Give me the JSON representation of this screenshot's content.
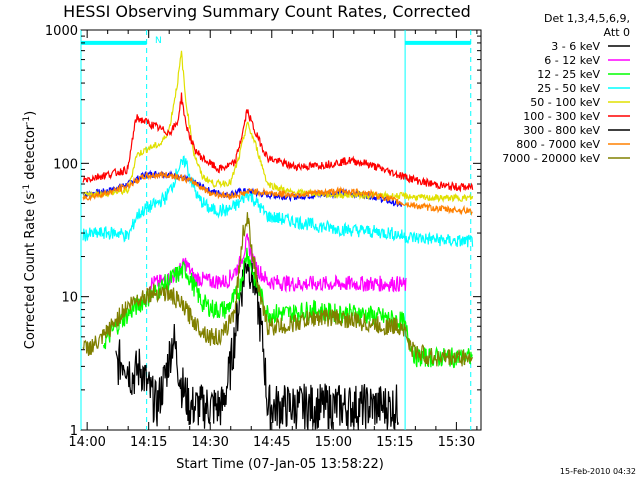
{
  "chart_data": {
    "type": "line",
    "title": "HESSI Observing Summary Count Rates, Corrected",
    "xlabel": "Start Time (07-Jan-05 13:58:22)",
    "ylabel_main": "Corrected Count Rate (s",
    "ylabel_sup1": "-1",
    "ylabel_mid": " detector",
    "ylabel_sup2": "-1",
    "ylabel_end": ")",
    "yscale": "log",
    "ylim": [
      1,
      1000
    ],
    "xlim_minutes": [
      -1.5,
      96
    ],
    "x_tick_labels": [
      "14:00",
      "14:15",
      "14:30",
      "14:45",
      "15:00",
      "15:15",
      "15:30"
    ],
    "x_tick_minutes": [
      0,
      15,
      30,
      45,
      60,
      75,
      90
    ],
    "y_tick_labels": [
      "1",
      "10",
      "100",
      "1000"
    ],
    "y_tick_values": [
      1,
      10,
      100,
      1000
    ],
    "legend_header": [
      "Det 1,3,4,5,6,9,",
      "Att 0"
    ],
    "legend_position": "right",
    "footer_date": "15-Feb-2010 04:32",
    "annotation_label": "N",
    "annotations": {
      "solid_lines_min": [
        -1.5,
        77.5
      ],
      "dashed_lines_min": [
        14.5,
        93.5
      ],
      "bars": [
        {
          "from": -1.5,
          "to": 14.5,
          "y": 800
        },
        {
          "from": 77.5,
          "to": 93.5,
          "y": 800
        }
      ],
      "color": "#00ffff"
    },
    "series": [
      {
        "name": "3 - 6 keV",
        "color": "#000000",
        "points": [
          [
            7,
            3
          ],
          [
            9,
            3.5
          ],
          [
            11,
            2.5
          ],
          [
            13,
            3
          ],
          [
            15,
            2
          ],
          [
            17,
            1.5
          ],
          [
            19,
            2.5
          ],
          [
            21,
            5
          ],
          [
            23,
            2.2
          ],
          [
            25,
            1.5
          ],
          [
            27,
            1.5
          ],
          [
            29,
            1.5
          ],
          [
            31,
            1.5
          ],
          [
            33,
            1.5
          ],
          [
            35,
            3
          ],
          [
            37,
            9
          ],
          [
            39,
            20
          ],
          [
            41,
            12
          ],
          [
            43,
            4
          ],
          [
            44,
            1.5
          ],
          [
            48,
            1.5
          ],
          [
            55,
            1.5
          ],
          [
            60,
            1.5
          ],
          [
            70,
            1.5
          ],
          [
            76,
            1.5
          ]
        ]
      },
      {
        "name": "6 - 12 keV",
        "color": "#ff00ff",
        "points": [
          [
            15,
            12.5
          ],
          [
            19,
            13
          ],
          [
            22,
            15
          ],
          [
            24,
            18
          ],
          [
            26,
            14
          ],
          [
            30,
            13
          ],
          [
            34,
            13
          ],
          [
            37,
            17
          ],
          [
            39,
            26
          ],
          [
            41,
            17
          ],
          [
            44,
            13
          ],
          [
            50,
            12.5
          ],
          [
            60,
            12.5
          ],
          [
            70,
            12.5
          ],
          [
            76,
            12.5
          ],
          [
            78,
            12
          ]
        ]
      },
      {
        "name": "12 - 25 keV",
        "color": "#00ff00",
        "points": [
          [
            4,
            4.5
          ],
          [
            8,
            6.5
          ],
          [
            11,
            8
          ],
          [
            14,
            9.5
          ],
          [
            17,
            11
          ],
          [
            21,
            14
          ],
          [
            24,
            16
          ],
          [
            26,
            12
          ],
          [
            28,
            9
          ],
          [
            31,
            8
          ],
          [
            34,
            8
          ],
          [
            37,
            11
          ],
          [
            39,
            22
          ],
          [
            41,
            13
          ],
          [
            44,
            7.5
          ],
          [
            50,
            7.5
          ],
          [
            55,
            8
          ],
          [
            60,
            7.5
          ],
          [
            66,
            7.5
          ],
          [
            72,
            7
          ],
          [
            77,
            6.5
          ],
          [
            80,
            3.5
          ],
          [
            86,
            3.5
          ],
          [
            94,
            3.5
          ]
        ]
      },
      {
        "name": "25 - 50 keV",
        "color": "#00ffff",
        "points": [
          [
            -1,
            29
          ],
          [
            4,
            30
          ],
          [
            8,
            30
          ],
          [
            10,
            28
          ],
          [
            12,
            40
          ],
          [
            14,
            45
          ],
          [
            17,
            50
          ],
          [
            19,
            55
          ],
          [
            21,
            70
          ],
          [
            22,
            90
          ],
          [
            24,
            105
          ],
          [
            25,
            80
          ],
          [
            27,
            55
          ],
          [
            30,
            45
          ],
          [
            34,
            44
          ],
          [
            37,
            50
          ],
          [
            39,
            60
          ],
          [
            41,
            52
          ],
          [
            44,
            40
          ],
          [
            50,
            37
          ],
          [
            56,
            34
          ],
          [
            62,
            32
          ],
          [
            68,
            31
          ],
          [
            74,
            30
          ],
          [
            78,
            28
          ],
          [
            84,
            27
          ],
          [
            90,
            26
          ],
          [
            94,
            26
          ]
        ]
      },
      {
        "name": "50 - 100 keV",
        "color": "#e0e000",
        "points": [
          [
            -1,
            57
          ],
          [
            5,
            60
          ],
          [
            10,
            62
          ],
          [
            12,
            115
          ],
          [
            15,
            130
          ],
          [
            18,
            140
          ],
          [
            20,
            180
          ],
          [
            22,
            400
          ],
          [
            23,
            680
          ],
          [
            24,
            300
          ],
          [
            26,
            120
          ],
          [
            28,
            80
          ],
          [
            31,
            70
          ],
          [
            35,
            72
          ],
          [
            37,
            110
          ],
          [
            39,
            200
          ],
          [
            41,
            140
          ],
          [
            44,
            70
          ],
          [
            50,
            60
          ],
          [
            55,
            60
          ],
          [
            60,
            58
          ],
          [
            66,
            58
          ],
          [
            72,
            57
          ],
          [
            77,
            57
          ],
          [
            82,
            55
          ],
          [
            88,
            55
          ],
          [
            94,
            55
          ]
        ]
      },
      {
        "name": "100 - 300 keV",
        "color": "#ff0000",
        "points": [
          [
            -1,
            75
          ],
          [
            3,
            80
          ],
          [
            7,
            85
          ],
          [
            10,
            90
          ],
          [
            11,
            150
          ],
          [
            12,
            220
          ],
          [
            15,
            200
          ],
          [
            18,
            180
          ],
          [
            20,
            170
          ],
          [
            22,
            200
          ],
          [
            23,
            320
          ],
          [
            24,
            200
          ],
          [
            26,
            130
          ],
          [
            28,
            110
          ],
          [
            32,
            90
          ],
          [
            36,
            100
          ],
          [
            38,
            175
          ],
          [
            39,
            250
          ],
          [
            41,
            170
          ],
          [
            44,
            110
          ],
          [
            50,
            95
          ],
          [
            55,
            95
          ],
          [
            60,
            100
          ],
          [
            64,
            105
          ],
          [
            68,
            100
          ],
          [
            72,
            90
          ],
          [
            77,
            80
          ],
          [
            82,
            72
          ],
          [
            88,
            67
          ],
          [
            94,
            66
          ]
        ]
      },
      {
        "name": "300 - 800 keV",
        "color": "#000000",
        "points": []
      },
      {
        "name": "800 - 7000 keV",
        "color": "#ff8000",
        "points": [
          [
            -1,
            55
          ],
          [
            5,
            60
          ],
          [
            10,
            68
          ],
          [
            14,
            80
          ],
          [
            18,
            82
          ],
          [
            22,
            80
          ],
          [
            26,
            72
          ],
          [
            30,
            60
          ],
          [
            34,
            57
          ],
          [
            37,
            58
          ],
          [
            40,
            62
          ],
          [
            44,
            60
          ],
          [
            50,
            58
          ],
          [
            56,
            60
          ],
          [
            62,
            62
          ],
          [
            68,
            60
          ],
          [
            72,
            56
          ],
          [
            77,
            50
          ],
          [
            82,
            47
          ],
          [
            88,
            45
          ],
          [
            94,
            44
          ]
        ]
      },
      {
        "name": "7000 - 20000 keV",
        "color": "#808000",
        "points": [
          [
            -1,
            4
          ],
          [
            3,
            4.5
          ],
          [
            6,
            6
          ],
          [
            9,
            8
          ],
          [
            12,
            9.5
          ],
          [
            15,
            10.5
          ],
          [
            18,
            11
          ],
          [
            21,
            10
          ],
          [
            24,
            8
          ],
          [
            27,
            6
          ],
          [
            30,
            5
          ],
          [
            33,
            5
          ],
          [
            36,
            8
          ],
          [
            38,
            30
          ],
          [
            39,
            40
          ],
          [
            40,
            25
          ],
          [
            42,
            10
          ],
          [
            44,
            6
          ],
          [
            48,
            6
          ],
          [
            52,
            6.5
          ],
          [
            56,
            7
          ],
          [
            60,
            7
          ],
          [
            66,
            6.5
          ],
          [
            72,
            6
          ],
          [
            77,
            6
          ],
          [
            79,
            4
          ],
          [
            84,
            3.5
          ],
          [
            90,
            3.5
          ],
          [
            94,
            3.5
          ]
        ]
      }
    ],
    "blue_band": {
      "color": "#0000ff",
      "points": [
        [
          -1,
          58
        ],
        [
          5,
          62
        ],
        [
          10,
          70
        ],
        [
          14,
          82
        ],
        [
          18,
          84
        ],
        [
          22,
          80
        ],
        [
          26,
          72
        ],
        [
          30,
          62
        ],
        [
          34,
          58
        ],
        [
          38,
          62
        ],
        [
          44,
          58
        ],
        [
          50,
          56
        ],
        [
          56,
          58
        ],
        [
          62,
          60
        ],
        [
          68,
          58
        ],
        [
          72,
          54
        ],
        [
          77,
          48
        ]
      ]
    }
  }
}
